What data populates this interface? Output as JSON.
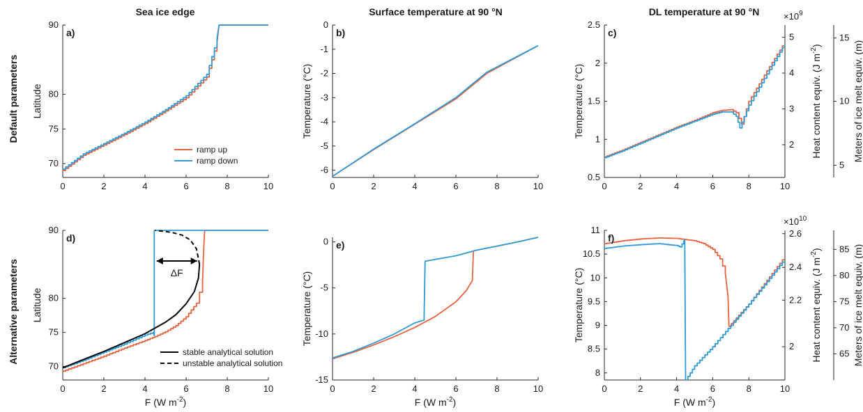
{
  "colors": {
    "ramp_up": "#e8613f",
    "ramp_down": "#2f9bd6",
    "analytic": "#000000",
    "axis": "#262626"
  },
  "figure": {
    "row_labels": [
      "Default parameters",
      "Alternative parameters"
    ],
    "col_titles": [
      "Sea ice edge",
      "Surface temperature at 90 °N",
      "DL temperature at 90 °N"
    ]
  },
  "chart_data": [
    {
      "panel": "a)",
      "type": "line",
      "xlabel": "",
      "ylabel": "Latitude",
      "xlim": [
        0,
        10
      ],
      "ylim": [
        68,
        90
      ],
      "xticks": [
        0,
        2,
        4,
        6,
        8,
        10
      ],
      "yticks": [
        70,
        75,
        80,
        90
      ],
      "legend": {
        "placement": "bottom-right",
        "entries": [
          "ramp up",
          "ramp down"
        ]
      },
      "series": [
        {
          "name": "ramp up",
          "color": "ramp_up",
          "stepped": true,
          "x": [
            0,
            1,
            2,
            3,
            4,
            5,
            6,
            7,
            7.5,
            7.6,
            10
          ],
          "y": [
            69,
            71.2,
            72.7,
            74.2,
            75.8,
            77.6,
            79.5,
            82.5,
            87.5,
            90,
            90
          ]
        },
        {
          "name": "ramp down",
          "color": "ramp_down",
          "stepped": true,
          "x": [
            0,
            1,
            2,
            3,
            4,
            5,
            6,
            7,
            7.5,
            7.6,
            10
          ],
          "y": [
            69.2,
            71.4,
            72.9,
            74.4,
            76,
            77.8,
            79.8,
            82.9,
            88,
            90,
            90
          ]
        }
      ]
    },
    {
      "panel": "b)",
      "type": "line",
      "xlabel": "",
      "ylabel": "Temperature (°C)",
      "xlim": [
        0,
        10
      ],
      "ylim": [
        -6.3,
        0
      ],
      "xticks": [
        0,
        2,
        4,
        6,
        8,
        10
      ],
      "yticks": [
        -6,
        -5,
        -4,
        -3,
        -2,
        -1,
        0
      ],
      "series": [
        {
          "name": "ramp up",
          "color": "ramp_up",
          "x": [
            0,
            2,
            4,
            6,
            7.5,
            10
          ],
          "y": [
            -6.25,
            -5.15,
            -4.1,
            -3.05,
            -2.0,
            -0.85
          ]
        },
        {
          "name": "ramp down",
          "color": "ramp_down",
          "x": [
            0,
            2,
            4,
            6,
            7.5,
            10
          ],
          "y": [
            -6.25,
            -5.13,
            -4.08,
            -3.0,
            -1.95,
            -0.85
          ]
        }
      ]
    },
    {
      "panel": "c)",
      "type": "line",
      "xlabel": "",
      "ylabel": "Temperature (°C)",
      "xlim": [
        0,
        10
      ],
      "ylim": [
        0.5,
        2.5
      ],
      "xticks": [
        0,
        2,
        4,
        6,
        8,
        10
      ],
      "yticks": [
        0.5,
        1,
        1.5,
        2,
        2.5
      ],
      "right_axes": [
        {
          "label": "Heat content equiv. (J m⁻²)",
          "exponent": "×10⁹",
          "ticks": [
            "2",
            "3",
            "4",
            "5"
          ],
          "tick_values": [
            0.93,
            1.4,
            1.87,
            2.34
          ]
        },
        {
          "label": "Meters of ice melt equiv. (m)",
          "ticks": [
            "5",
            "10",
            "15"
          ],
          "tick_values": [
            0.66,
            1.5,
            2.33
          ]
        }
      ],
      "series": [
        {
          "name": "ramp up",
          "color": "ramp_up",
          "stepped": true,
          "x": [
            0,
            1,
            2,
            3,
            4,
            5,
            6,
            6.5,
            7,
            7.3,
            7.6,
            8,
            9,
            10
          ],
          "y": [
            0.77,
            0.86,
            0.96,
            1.06,
            1.16,
            1.25,
            1.35,
            1.38,
            1.39,
            1.35,
            1.2,
            1.5,
            1.9,
            2.28
          ]
        },
        {
          "name": "ramp down",
          "color": "ramp_down",
          "stepped": true,
          "x": [
            0,
            1,
            2,
            3,
            4,
            5,
            6,
            6.5,
            7,
            7.3,
            7.5,
            8,
            9,
            10
          ],
          "y": [
            0.76,
            0.85,
            0.95,
            1.05,
            1.15,
            1.24,
            1.33,
            1.36,
            1.36,
            1.3,
            1.15,
            1.45,
            1.86,
            2.26
          ]
        }
      ]
    },
    {
      "panel": "d)",
      "type": "line",
      "xlabel": "F (W m⁻²)",
      "ylabel": "Latitude",
      "xlim": [
        0,
        10
      ],
      "ylim": [
        68,
        90
      ],
      "xticks": [
        0,
        2,
        4,
        6,
        8,
        10
      ],
      "yticks": [
        70,
        75,
        80,
        90
      ],
      "legend": {
        "placement": "bottom-right",
        "entries": [
          "stable analytical solution",
          "unstable analytical solution"
        ]
      },
      "annotation": "ΔF",
      "series": [
        {
          "name": "ramp up",
          "color": "ramp_up",
          "stepped": true,
          "x": [
            0,
            1,
            2,
            3,
            4,
            4.5,
            5,
            5.5,
            6,
            6.5,
            6.8,
            6.85,
            6.9,
            10
          ],
          "y": [
            69.3,
            70.4,
            71.5,
            72.7,
            73.8,
            74.4,
            75.1,
            76,
            77.3,
            79.3,
            82.5,
            87,
            90,
            90
          ]
        },
        {
          "name": "ramp down",
          "color": "ramp_down",
          "stepped": true,
          "x": [
            0,
            1,
            2,
            3,
            4,
            4.4,
            4.45,
            4.45,
            4.5,
            10
          ],
          "y": [
            69.8,
            70.9,
            72.1,
            73.3,
            74.6,
            75,
            74.5,
            90,
            90,
            90
          ]
        },
        {
          "name": "stable analytical solution",
          "color": "analytic",
          "x": [
            0,
            1,
            2,
            3,
            4,
            5,
            5.5,
            6,
            6.4,
            6.6,
            6.65
          ],
          "y": [
            69.8,
            71,
            72.2,
            73.5,
            74.8,
            76.5,
            77.6,
            79.2,
            81,
            83,
            85
          ]
        },
        {
          "name": "unstable analytical solution",
          "color": "analytic",
          "dashed": true,
          "x": [
            6.65,
            6.5,
            6.2,
            5.8,
            5.3,
            4.8,
            4.5
          ],
          "y": [
            85,
            87.3,
            88.6,
            89.3,
            89.7,
            89.9,
            90
          ]
        }
      ]
    },
    {
      "panel": "e)",
      "type": "line",
      "xlabel": "F (W m⁻²)",
      "ylabel": "Temperature (°C)",
      "xlim": [
        0,
        10
      ],
      "ylim": [
        -15,
        0.5
      ],
      "xticks": [
        0,
        2,
        4,
        6,
        8,
        10
      ],
      "yticks": [
        -15,
        -10,
        -5,
        0
      ],
      "series": [
        {
          "name": "ramp up",
          "color": "ramp_up",
          "x": [
            0,
            1,
            2,
            3,
            4,
            5,
            6,
            6.5,
            6.8,
            6.85,
            7,
            8,
            9,
            10
          ],
          "y": [
            -12.7,
            -12.0,
            -11.2,
            -10.3,
            -9.3,
            -8.1,
            -6.5,
            -5.3,
            -4.2,
            -1.0,
            -0.9,
            -0.45,
            0,
            0.5
          ]
        },
        {
          "name": "ramp down",
          "color": "ramp_down",
          "x": [
            0,
            1,
            2,
            3,
            4,
            4.45,
            4.5,
            6,
            7,
            8,
            9,
            10
          ],
          "y": [
            -12.6,
            -11.9,
            -11.0,
            -10.0,
            -8.8,
            -8.5,
            -2.1,
            -1.5,
            -0.9,
            -0.45,
            0,
            0.5
          ]
        }
      ]
    },
    {
      "panel": "f)",
      "type": "line",
      "xlabel": "F (W m⁻²)",
      "ylabel": "Temperature (°C)",
      "xlim": [
        0,
        10
      ],
      "ylim": [
        7.85,
        11
      ],
      "xticks": [
        0,
        2,
        4,
        6,
        8,
        10
      ],
      "yticks": [
        8,
        8.5,
        9,
        9.5,
        10,
        10.5,
        11
      ],
      "right_axes": [
        {
          "label": "Heat content equiv. (J m⁻²)",
          "exponent": "×10¹⁰",
          "ticks": [
            "2",
            "2.2",
            "2.4",
            "2.6"
          ],
          "tick_values": [
            8.55,
            9.53,
            10.22,
            10.93
          ]
        },
        {
          "label": "Meters of ice melt equiv. (m)",
          "ticks": [
            "65",
            "70",
            "75",
            "80",
            "85"
          ],
          "tick_values": [
            8.4,
            8.95,
            9.5,
            10.05,
            10.6
          ]
        }
      ],
      "series": [
        {
          "name": "ramp up",
          "color": "ramp_up",
          "stepped": true,
          "x": [
            0,
            1,
            2,
            3,
            4,
            5,
            5.5,
            6,
            6.4,
            6.7,
            6.85,
            6.9,
            8,
            9,
            10
          ],
          "y": [
            10.72,
            10.78,
            10.82,
            10.84,
            10.83,
            10.78,
            10.72,
            10.6,
            10.4,
            10.1,
            9.6,
            8.98,
            9.45,
            9.95,
            10.45
          ]
        },
        {
          "name": "ramp down",
          "color": "ramp_down",
          "stepped": true,
          "x": [
            0,
            1,
            2,
            3,
            4,
            4.2,
            4.4,
            4.45,
            4.5,
            5,
            6,
            7,
            8,
            9,
            10
          ],
          "y": [
            10.62,
            10.67,
            10.7,
            10.72,
            10.68,
            10.65,
            10.78,
            10.8,
            7.85,
            8.15,
            8.55,
            9.0,
            9.45,
            9.92,
            10.4
          ]
        }
      ]
    }
  ]
}
